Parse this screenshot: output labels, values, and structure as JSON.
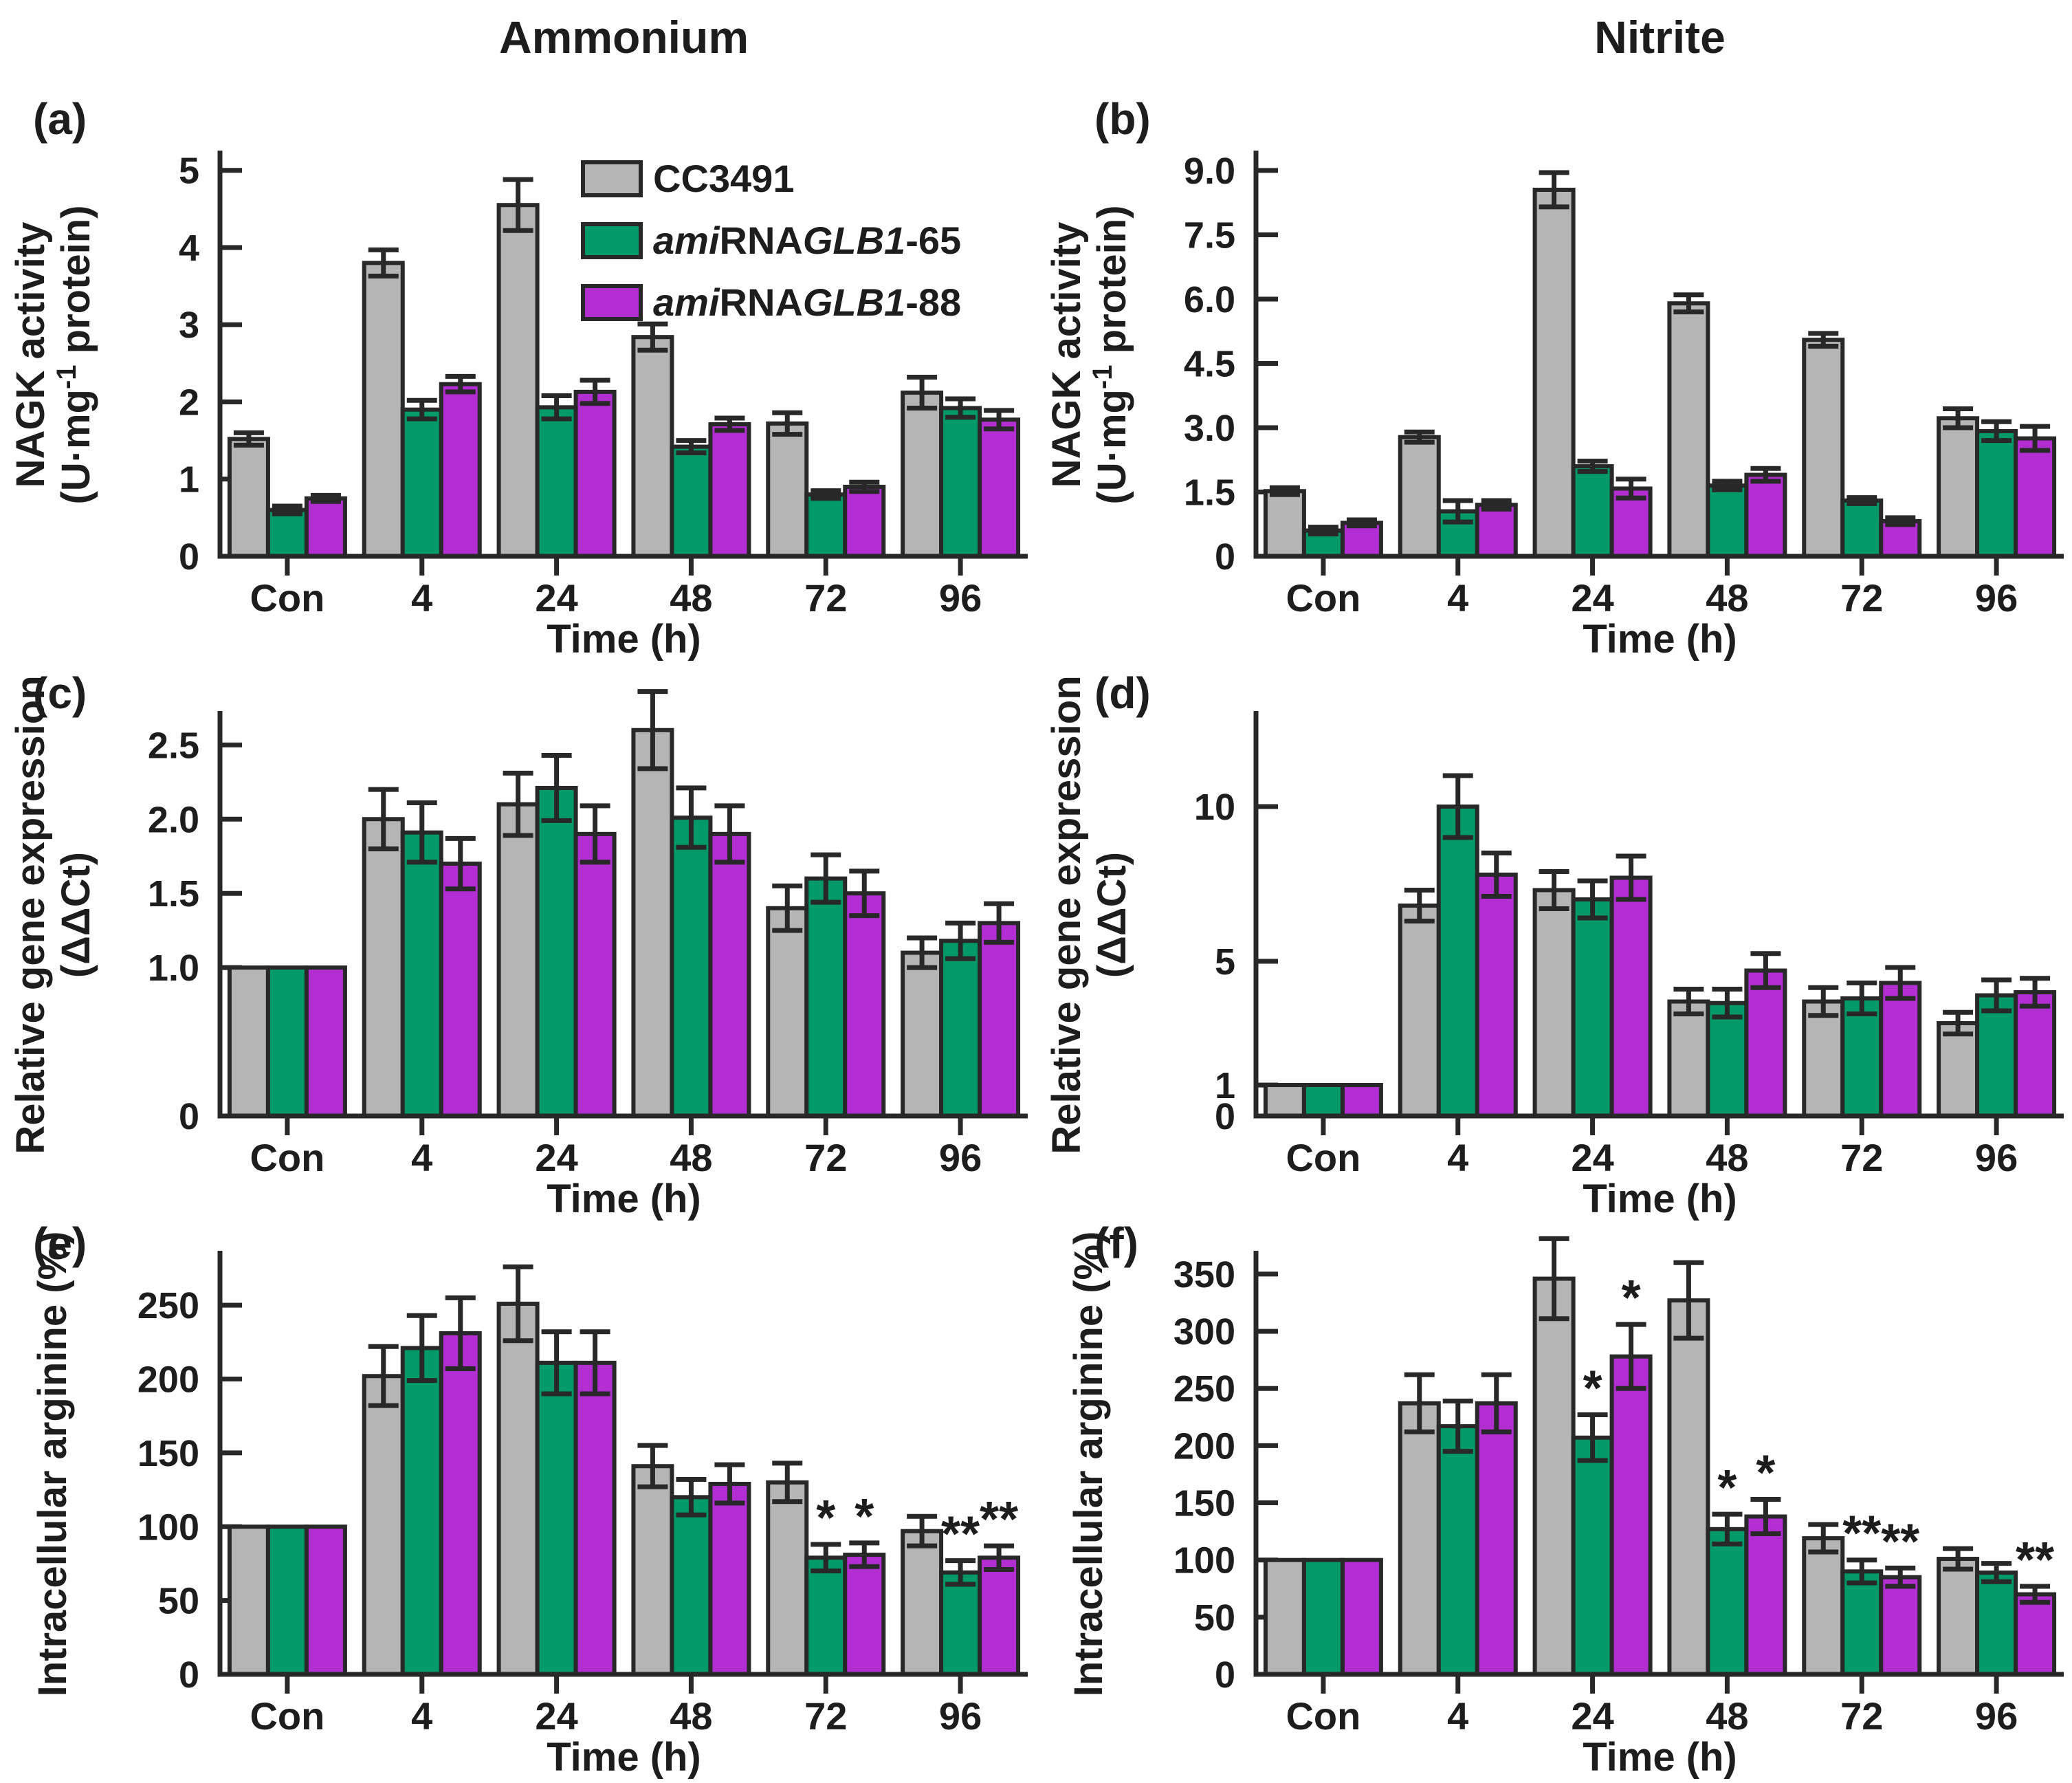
{
  "titles": [
    "Ammonium",
    "Nitrite"
  ],
  "xlabel": "Time (h)",
  "categories": [
    "Con",
    "4",
    "24",
    "48",
    "72",
    "96"
  ],
  "colors": {
    "gray": "#b5b5b5",
    "green": "#019a68",
    "purple": "#b22ed3",
    "stroke": "#282828",
    "text": "#1d1d1d"
  },
  "legend": {
    "items": [
      {
        "color": "gray",
        "segments": [
          {
            "t": "CC3491"
          }
        ]
      },
      {
        "color": "green",
        "segments": [
          {
            "t": "ami",
            "i": true
          },
          {
            "t": "RNA"
          },
          {
            "t": "GLB1",
            "i": true
          },
          {
            "t": "-65"
          }
        ]
      },
      {
        "color": "purple",
        "segments": [
          {
            "t": "ami",
            "i": true
          },
          {
            "t": "RNA"
          },
          {
            "t": "GLB1",
            "i": true
          },
          {
            "t": "-88"
          }
        ]
      }
    ]
  },
  "chart_data": [
    {
      "id": "a",
      "letter": "(a)",
      "type": "bar",
      "row": 0,
      "col": 0,
      "legend": true,
      "title": "Ammonium",
      "xlabel": "Time (h)",
      "ylabel_lines": [
        [
          {
            "t": "NAGK activity"
          }
        ],
        [
          {
            "t": "(U·mg"
          },
          {
            "t": "-1",
            "sup": true
          },
          {
            "t": " protein)"
          }
        ]
      ],
      "ylim": [
        0,
        5.22
      ],
      "yticks": [
        {
          "v": 0,
          "l": "0"
        },
        {
          "v": 1,
          "l": "1"
        },
        {
          "v": 2,
          "l": "2"
        },
        {
          "v": 3,
          "l": "3"
        },
        {
          "v": 4,
          "l": "4"
        },
        {
          "v": 5,
          "l": "5"
        }
      ],
      "categories": [
        "Con",
        "4",
        "24",
        "48",
        "72",
        "96"
      ],
      "series": [
        {
          "name": "CC3491",
          "color": "gray",
          "values": [
            1.52,
            3.8,
            4.55,
            2.84,
            1.72,
            2.12
          ],
          "errors": [
            0.08,
            0.17,
            0.33,
            0.17,
            0.14,
            0.2
          ],
          "sig": [
            "",
            "",
            "",
            "",
            "",
            ""
          ]
        },
        {
          "name": "amiRNAGLB1-65",
          "color": "green",
          "values": [
            0.6,
            1.9,
            1.93,
            1.42,
            0.8,
            1.92
          ],
          "errors": [
            0.05,
            0.12,
            0.15,
            0.08,
            0.05,
            0.12
          ],
          "sig": [
            "",
            "",
            "",
            "",
            "",
            ""
          ]
        },
        {
          "name": "amiRNAGLB1-88",
          "color": "purple",
          "values": [
            0.75,
            2.23,
            2.13,
            1.71,
            0.9,
            1.77
          ],
          "errors": [
            0.04,
            0.1,
            0.15,
            0.08,
            0.06,
            0.12
          ],
          "sig": [
            "",
            "",
            "",
            "",
            "",
            ""
          ]
        }
      ]
    },
    {
      "id": "b",
      "letter": "(b)",
      "type": "bar",
      "row": 0,
      "col": 1,
      "legend": false,
      "title": "Nitrite",
      "xlabel": "Time (h)",
      "ylabel_lines": [
        [
          {
            "t": "NAGK activity"
          }
        ],
        [
          {
            "t": "(U·mg"
          },
          {
            "t": "-1",
            "sup": true
          },
          {
            "t": " protein)"
          }
        ]
      ],
      "ylim": [
        0,
        9.4
      ],
      "yticks": [
        {
          "v": 0,
          "l": "0"
        },
        {
          "v": 1.5,
          "l": "1.5"
        },
        {
          "v": 3,
          "l": "3.0"
        },
        {
          "v": 4.5,
          "l": "4.5"
        },
        {
          "v": 6,
          "l": "6.0"
        },
        {
          "v": 7.5,
          "l": "7.5"
        },
        {
          "v": 9,
          "l": "9.0"
        }
      ],
      "categories": [
        "Con",
        "4",
        "24",
        "48",
        "72",
        "96"
      ],
      "series": [
        {
          "name": "CC3491",
          "color": "gray",
          "values": [
            1.52,
            2.78,
            8.55,
            5.9,
            5.05,
            3.22
          ],
          "errors": [
            0.08,
            0.12,
            0.4,
            0.2,
            0.15,
            0.22
          ],
          "sig": [
            "",
            "",
            "",
            "",
            "",
            ""
          ]
        },
        {
          "name": "amiRNAGLB1-65",
          "color": "green",
          "values": [
            0.6,
            1.05,
            2.1,
            1.65,
            1.3,
            2.92
          ],
          "errors": [
            0.08,
            0.25,
            0.12,
            0.1,
            0.07,
            0.22
          ],
          "sig": [
            "",
            "",
            "",
            "",
            "",
            ""
          ]
        },
        {
          "name": "amiRNAGLB1-88",
          "color": "purple",
          "values": [
            0.78,
            1.2,
            1.58,
            1.9,
            0.82,
            2.75
          ],
          "errors": [
            0.07,
            0.1,
            0.22,
            0.15,
            0.08,
            0.28
          ],
          "sig": [
            "",
            "",
            "",
            "",
            "",
            ""
          ]
        }
      ]
    },
    {
      "id": "c",
      "letter": "(c)",
      "type": "bar",
      "row": 1,
      "col": 0,
      "legend": false,
      "title": "Ammonium",
      "xlabel": "Time (h)",
      "ylabel_lines": [
        [
          {
            "t": "Relative gene expression"
          }
        ],
        [
          {
            "t": "(ΔΔCt)"
          }
        ]
      ],
      "ylim": [
        0,
        2.71
      ],
      "yticks": [
        {
          "v": 0,
          "l": "0"
        },
        {
          "v": 1.0,
          "l": "1.0"
        },
        {
          "v": 1.5,
          "l": "1.5"
        },
        {
          "v": 2.0,
          "l": "2.0"
        },
        {
          "v": 2.5,
          "l": "2.5"
        }
      ],
      "categories": [
        "Con",
        "4",
        "24",
        "48",
        "72",
        "96"
      ],
      "series": [
        {
          "name": "CC3491",
          "color": "gray",
          "values": [
            1.0,
            2.0,
            2.1,
            2.6,
            1.4,
            1.1
          ],
          "errors": [
            0,
            0.2,
            0.21,
            0.26,
            0.15,
            0.1
          ],
          "sig": [
            "",
            "",
            "",
            "",
            "",
            ""
          ]
        },
        {
          "name": "amiRNAGLB1-65",
          "color": "green",
          "values": [
            1.0,
            1.91,
            2.21,
            2.01,
            1.6,
            1.18
          ],
          "errors": [
            0,
            0.2,
            0.22,
            0.2,
            0.16,
            0.12
          ],
          "sig": [
            "",
            "",
            "",
            "",
            "",
            ""
          ]
        },
        {
          "name": "amiRNAGLB1-88",
          "color": "purple",
          "values": [
            1.0,
            1.7,
            1.9,
            1.9,
            1.5,
            1.3
          ],
          "errors": [
            0,
            0.17,
            0.19,
            0.19,
            0.15,
            0.13
          ],
          "sig": [
            "",
            "",
            "",
            "",
            "",
            ""
          ]
        }
      ]
    },
    {
      "id": "d",
      "letter": "(d)",
      "type": "bar",
      "row": 1,
      "col": 1,
      "legend": false,
      "title": "Nitrite",
      "xlabel": "Time (h)",
      "ylabel_lines": [
        [
          {
            "t": "Relative gene expression"
          }
        ],
        [
          {
            "t": "(ΔΔCt)"
          }
        ]
      ],
      "ylim": [
        0,
        13.0
      ],
      "yticks": [
        {
          "v": 0,
          "l": "0"
        },
        {
          "v": 1,
          "l": "1"
        },
        {
          "v": 5,
          "l": "5"
        },
        {
          "v": 10,
          "l": "10"
        }
      ],
      "categories": [
        "Con",
        "4",
        "24",
        "48",
        "72",
        "96"
      ],
      "series": [
        {
          "name": "CC3491",
          "color": "gray",
          "values": [
            1.0,
            6.8,
            7.3,
            3.7,
            3.7,
            3.0
          ],
          "errors": [
            0,
            0.5,
            0.6,
            0.4,
            0.45,
            0.35
          ],
          "sig": [
            "",
            "",
            "",
            "",
            "",
            ""
          ]
        },
        {
          "name": "amiRNAGLB1-65",
          "color": "green",
          "values": [
            1.0,
            10.0,
            7.0,
            3.65,
            3.8,
            3.9
          ],
          "errors": [
            0,
            1.0,
            0.6,
            0.45,
            0.5,
            0.5
          ],
          "sig": [
            "",
            "",
            "",
            "",
            "",
            ""
          ]
        },
        {
          "name": "amiRNAGLB1-88",
          "color": "purple",
          "values": [
            1.0,
            7.8,
            7.7,
            4.7,
            4.3,
            4.0
          ],
          "errors": [
            0,
            0.7,
            0.7,
            0.55,
            0.5,
            0.45
          ],
          "sig": [
            "",
            "",
            "",
            "",
            "",
            ""
          ]
        }
      ]
    },
    {
      "id": "e",
      "letter": "(e)",
      "type": "bar",
      "row": 2,
      "col": 0,
      "legend": false,
      "title": "Ammonium",
      "xlabel": "Time (h)",
      "ylabel_lines": [
        [
          {
            "t": "Intracellular arginine (%)"
          }
        ]
      ],
      "ylim": [
        0,
        285
      ],
      "yticks": [
        {
          "v": 0,
          "l": "0"
        },
        {
          "v": 50,
          "l": "50"
        },
        {
          "v": 100,
          "l": "100"
        },
        {
          "v": 150,
          "l": "150"
        },
        {
          "v": 200,
          "l": "200"
        },
        {
          "v": 250,
          "l": "250"
        }
      ],
      "categories": [
        "Con",
        "4",
        "24",
        "48",
        "72",
        "96"
      ],
      "series": [
        {
          "name": "CC3491",
          "color": "gray",
          "values": [
            100,
            202,
            251,
            141,
            130,
            97
          ],
          "errors": [
            0,
            20,
            25,
            14,
            13,
            10
          ],
          "sig": [
            "",
            "",
            "",
            "",
            "",
            ""
          ]
        },
        {
          "name": "amiRNAGLB1-65",
          "color": "green",
          "values": [
            100,
            221,
            211,
            120,
            79,
            69
          ],
          "errors": [
            0,
            22,
            21,
            12,
            9,
            8
          ],
          "sig": [
            "",
            "",
            "",
            "",
            "*",
            "**"
          ]
        },
        {
          "name": "amiRNAGLB1-88",
          "color": "purple",
          "values": [
            100,
            231,
            211,
            129,
            81,
            79
          ],
          "errors": [
            0,
            24,
            21,
            13,
            8,
            8
          ],
          "sig": [
            "",
            "",
            "",
            "",
            "*",
            "**"
          ]
        }
      ]
    },
    {
      "id": "f",
      "letter": "(f)",
      "type": "bar",
      "row": 2,
      "col": 1,
      "legend": false,
      "title": "Nitrite",
      "xlabel": "Time (h)",
      "ylabel_lines": [
        [
          {
            "t": "Intracellular arginine (%)"
          }
        ]
      ],
      "ylim": [
        0,
        368
      ],
      "yticks": [
        {
          "v": 0,
          "l": "0"
        },
        {
          "v": 50,
          "l": "50"
        },
        {
          "v": 100,
          "l": "100"
        },
        {
          "v": 150,
          "l": "150"
        },
        {
          "v": 200,
          "l": "200"
        },
        {
          "v": 250,
          "l": "250"
        },
        {
          "v": 300,
          "l": "300"
        },
        {
          "v": 350,
          "l": "350"
        }
      ],
      "categories": [
        "Con",
        "4",
        "24",
        "48",
        "72",
        "96"
      ],
      "series": [
        {
          "name": "CC3491",
          "color": "gray",
          "values": [
            100,
            237,
            346,
            327,
            119,
            101
          ],
          "errors": [
            0,
            25,
            35,
            33,
            12,
            9
          ],
          "sig": [
            "",
            "",
            "",
            "",
            "",
            ""
          ]
        },
        {
          "name": "amiRNAGLB1-65",
          "color": "green",
          "values": [
            100,
            217,
            207,
            127,
            90,
            89
          ],
          "errors": [
            0,
            22,
            20,
            13,
            10,
            8
          ],
          "sig": [
            "",
            "",
            "*",
            "*",
            "**",
            ""
          ]
        },
        {
          "name": "amiRNAGLB1-88",
          "color": "purple",
          "values": [
            100,
            237,
            278,
            138,
            85,
            70
          ],
          "errors": [
            0,
            25,
            28,
            15,
            8,
            7
          ],
          "sig": [
            "",
            "",
            "*",
            "*",
            "**",
            "**"
          ]
        }
      ]
    }
  ]
}
